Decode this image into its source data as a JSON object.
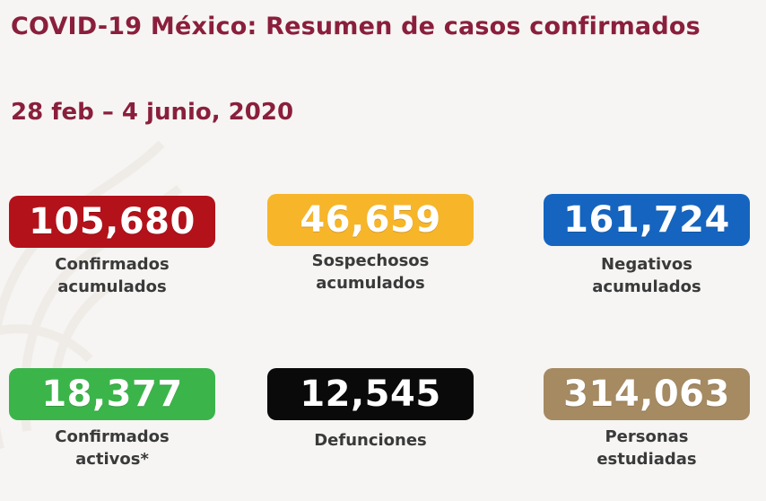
{
  "header": {
    "title": "COVID-19 México: Resumen de casos confirmados",
    "date_range": "28 feb – 4 junio, 2020"
  },
  "stats": [
    {
      "value": "105,680",
      "label": "Confirmados\nacumulados",
      "color": "#b3121b"
    },
    {
      "value": "46,659",
      "label": "Sospechosos\nacumulados",
      "color": "#f7b52a"
    },
    {
      "value": "161,724",
      "label": "Negativos\nacumulados",
      "color": "#1565c0"
    },
    {
      "value": "18,377",
      "label": "Confirmados\nactivos*",
      "color": "#3bb54a"
    },
    {
      "value": "12,545",
      "label": "Defunciones",
      "color": "#0a0a0a"
    },
    {
      "value": "314,063",
      "label": "Personas\nestudiadas",
      "color": "#a58a62"
    }
  ]
}
